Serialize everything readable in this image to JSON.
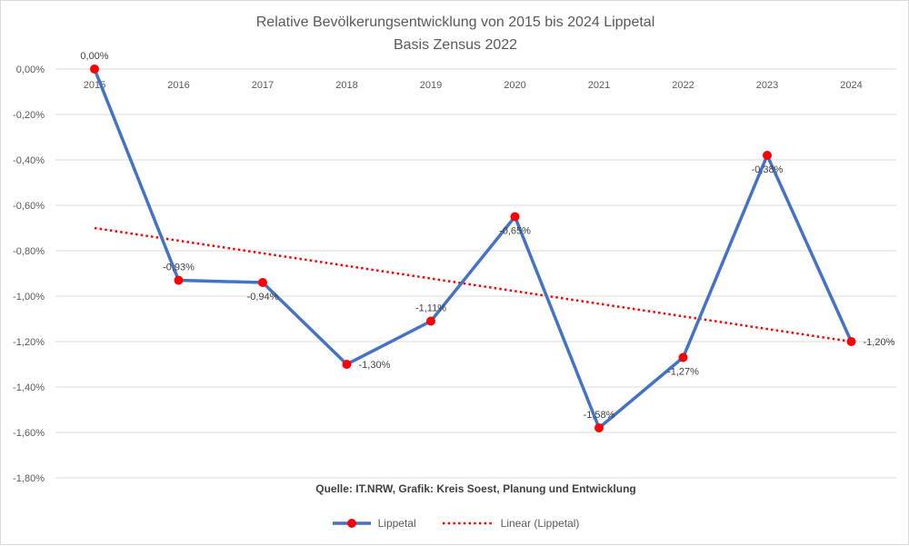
{
  "title": {
    "line1": "Relative Bevölkerungsentwicklung von 2015 bis 2024 Lippetal",
    "line2": "Basis Zensus 2022"
  },
  "source_note": "Quelle: IT.NRW, Grafik: Kreis Soest, Planung und Entwicklung",
  "legend": {
    "series1": "Lippetal",
    "series2": "Linear (Lippetal)"
  },
  "colors": {
    "line": "#4472C4",
    "marker": "#FF0000",
    "trend": "#FF0000",
    "grid": "#D9D9D9",
    "tick_text": "#595959",
    "label_text": "#404040"
  },
  "chart_data": {
    "type": "line",
    "title": "Relative Bevölkerungsentwicklung von 2015 bis 2024 Lippetal Basis Zensus 2022",
    "categories": [
      "2015",
      "2016",
      "2017",
      "2018",
      "2019",
      "2020",
      "2021",
      "2022",
      "2023",
      "2024"
    ],
    "series": [
      {
        "name": "Lippetal",
        "values": [
          0.0,
          -0.93,
          -0.94,
          -1.3,
          -1.11,
          -0.65,
          -1.58,
          -1.27,
          -0.38,
          -1.2
        ],
        "labels": [
          "0,00%",
          "-0,93%",
          "-0,94%",
          "-1,30%",
          "-1,11%",
          "-0,65%",
          "-1,58%",
          "-1,27%",
          "-0,38%",
          "-1,20%"
        ]
      },
      {
        "name": "Linear (Lippetal)",
        "type": "linear-trend",
        "start": -0.7,
        "end": -1.2
      }
    ],
    "ylim": [
      -1.8,
      0.0
    ],
    "ytick_step": 0.2,
    "ytick_labels": [
      "0,00%",
      "-0,20%",
      "-0,40%",
      "-0,60%",
      "-0,80%",
      "-1,00%",
      "-1,20%",
      "-1,40%",
      "-1,60%",
      "-1,80%"
    ],
    "grid": true,
    "legend_position": "bottom",
    "label_pos": [
      "above",
      "above",
      "below",
      "right",
      "above",
      "below",
      "above",
      "below",
      "below",
      "right"
    ]
  }
}
